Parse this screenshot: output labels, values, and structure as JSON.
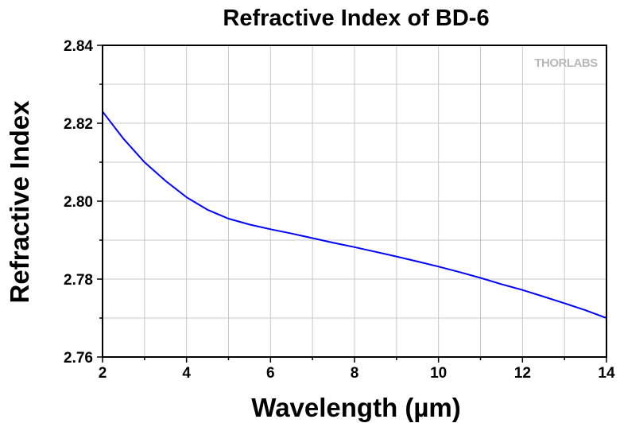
{
  "chart_data": {
    "type": "line",
    "title": "Refractive Index of BD-6",
    "xlabel": "Wavelength (µm)",
    "ylabel": "Refractive Index",
    "xlim": [
      2,
      14
    ],
    "ylim": [
      2.76,
      2.84
    ],
    "xticks": [
      "2",
      "4",
      "6",
      "8",
      "10",
      "12",
      "14"
    ],
    "yticks": [
      "2.76",
      "2.78",
      "2.80",
      "2.82",
      "2.84"
    ],
    "grid": true,
    "series": [
      {
        "color": "#0000ff",
        "x": [
          2.0,
          2.5,
          3.0,
          3.5,
          4.0,
          4.5,
          5.0,
          5.5,
          6.0,
          6.5,
          7.0,
          7.5,
          8.0,
          8.5,
          9.0,
          9.5,
          10.0,
          10.5,
          11.0,
          11.5,
          12.0,
          12.5,
          13.0,
          13.5,
          14.0
        ],
        "y": [
          2.823,
          2.816,
          2.81,
          2.8052,
          2.801,
          2.7978,
          2.7955,
          2.794,
          2.7928,
          2.7917,
          2.7905,
          2.7893,
          2.7882,
          2.787,
          2.7858,
          2.7845,
          2.7832,
          2.7818,
          2.7803,
          2.7787,
          2.7772,
          2.7755,
          2.7738,
          2.772,
          2.77
        ]
      }
    ]
  },
  "brand": {
    "watermark": "THORLABS"
  }
}
